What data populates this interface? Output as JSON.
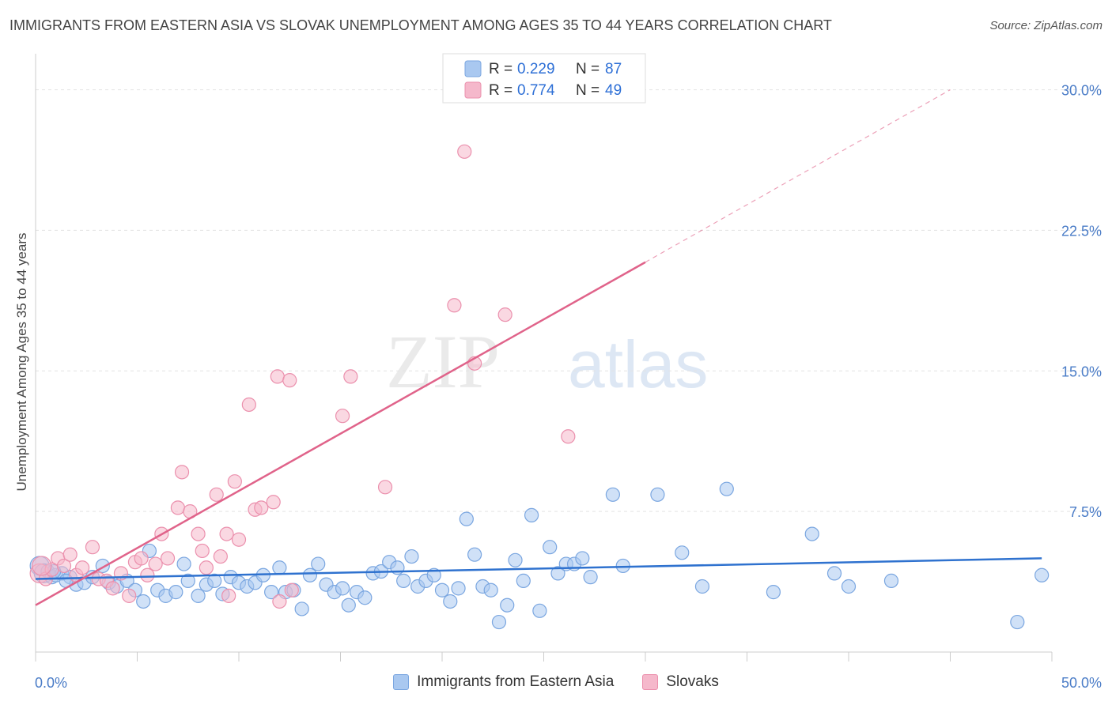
{
  "title": "IMMIGRANTS FROM EASTERN ASIA VS SLOVAK UNEMPLOYMENT AMONG AGES 35 TO 44 YEARS CORRELATION CHART",
  "source": "Source: ZipAtlas.com",
  "watermark": {
    "zip": "ZIP",
    "atlas": "atlas"
  },
  "legend": {
    "r_label": "R =",
    "n_label": "N =",
    "series": [
      {
        "r": "0.229",
        "n": "87"
      },
      {
        "r": "0.774",
        "n": "49"
      }
    ]
  },
  "colors": {
    "blue_fill": "#a9c8f0",
    "blue_stroke": "#7aa6e0",
    "blue_line": "#2f72cf",
    "pink_fill": "#f5b8cb",
    "pink_stroke": "#eb90ad",
    "pink_line": "#e0638a"
  },
  "chart_data": {
    "type": "scatter",
    "title": "IMMIGRANTS FROM EASTERN ASIA VS SLOVAK UNEMPLOYMENT AMONG AGES 35 TO 44 YEARS CORRELATION CHART",
    "xlabel": "",
    "ylabel": "Unemployment Among Ages 35 to 44 years",
    "xlim": [
      0,
      50
    ],
    "ylim": [
      0,
      31.5
    ],
    "x_tick_labels": [
      "0.0%",
      "50.0%"
    ],
    "y_ticks": [
      7.5,
      15.0,
      22.5,
      30.0
    ],
    "y_tick_labels": [
      "7.5%",
      "15.0%",
      "22.5%",
      "30.0%"
    ],
    "series": [
      {
        "name": "Immigrants from Eastern Asia",
        "color": "blue",
        "trend": {
          "x0": 0,
          "y0": 3.9,
          "x1": 49.5,
          "y1": 5.0
        },
        "points": [
          [
            0.2,
            4.6
          ],
          [
            0.4,
            4.2
          ],
          [
            0.6,
            4.3
          ],
          [
            0.8,
            4.0
          ],
          [
            1.0,
            4.1
          ],
          [
            1.3,
            4.2
          ],
          [
            1.7,
            4.0
          ],
          [
            2.0,
            3.6
          ],
          [
            2.4,
            3.7
          ],
          [
            2.8,
            4.0
          ],
          [
            3.3,
            4.6
          ],
          [
            3.6,
            3.7
          ],
          [
            4.0,
            3.5
          ],
          [
            4.5,
            3.8
          ],
          [
            4.9,
            3.3
          ],
          [
            5.3,
            2.7
          ],
          [
            5.6,
            5.4
          ],
          [
            6.0,
            3.3
          ],
          [
            6.4,
            3.0
          ],
          [
            6.9,
            3.2
          ],
          [
            7.3,
            4.7
          ],
          [
            7.5,
            3.8
          ],
          [
            8.0,
            3.0
          ],
          [
            8.4,
            3.6
          ],
          [
            8.8,
            3.8
          ],
          [
            9.2,
            3.1
          ],
          [
            9.6,
            4.0
          ],
          [
            10.0,
            3.7
          ],
          [
            10.4,
            3.5
          ],
          [
            10.8,
            3.7
          ],
          [
            11.2,
            4.1
          ],
          [
            11.6,
            3.2
          ],
          [
            12.0,
            4.5
          ],
          [
            12.3,
            3.2
          ],
          [
            12.7,
            3.3
          ],
          [
            13.1,
            2.3
          ],
          [
            13.5,
            4.1
          ],
          [
            13.9,
            4.7
          ],
          [
            14.3,
            3.6
          ],
          [
            14.7,
            3.2
          ],
          [
            15.1,
            3.4
          ],
          [
            15.4,
            2.5
          ],
          [
            15.8,
            3.2
          ],
          [
            16.2,
            2.9
          ],
          [
            16.6,
            4.2
          ],
          [
            17.0,
            4.3
          ],
          [
            17.4,
            4.8
          ],
          [
            17.8,
            4.5
          ],
          [
            18.1,
            3.8
          ],
          [
            18.5,
            5.1
          ],
          [
            18.8,
            3.5
          ],
          [
            19.2,
            3.8
          ],
          [
            19.6,
            4.1
          ],
          [
            20.0,
            3.3
          ],
          [
            20.4,
            2.7
          ],
          [
            20.8,
            3.4
          ],
          [
            21.2,
            7.1
          ],
          [
            21.6,
            5.2
          ],
          [
            22.0,
            3.5
          ],
          [
            22.4,
            3.3
          ],
          [
            22.8,
            1.6
          ],
          [
            23.2,
            2.5
          ],
          [
            23.6,
            4.9
          ],
          [
            24.0,
            3.8
          ],
          [
            24.4,
            7.3
          ],
          [
            24.8,
            2.2
          ],
          [
            25.3,
            5.6
          ],
          [
            25.7,
            4.2
          ],
          [
            26.1,
            4.7
          ],
          [
            26.5,
            4.7
          ],
          [
            26.9,
            5.0
          ],
          [
            27.3,
            4.0
          ],
          [
            28.4,
            8.4
          ],
          [
            28.9,
            4.6
          ],
          [
            30.6,
            8.4
          ],
          [
            31.8,
            5.3
          ],
          [
            32.8,
            3.5
          ],
          [
            34.0,
            8.7
          ],
          [
            36.3,
            3.2
          ],
          [
            38.2,
            6.3
          ],
          [
            39.3,
            4.2
          ],
          [
            40.0,
            3.5
          ],
          [
            42.1,
            3.8
          ],
          [
            48.3,
            1.6
          ],
          [
            49.5,
            4.1
          ],
          [
            0.9,
            4.3
          ],
          [
            1.5,
            3.8
          ]
        ]
      },
      {
        "name": "Slovaks",
        "color": "pink",
        "trend": {
          "x0": 0,
          "y0": 2.5,
          "x1": 30.0,
          "y1": 20.8
        },
        "trend_extension": {
          "x0": 30.0,
          "y0": 20.8,
          "x1": 45.0,
          "y1": 30.0
        },
        "points": [
          [
            0.2,
            4.2
          ],
          [
            0.5,
            3.9
          ],
          [
            0.8,
            4.4
          ],
          [
            1.1,
            5.0
          ],
          [
            1.4,
            4.6
          ],
          [
            1.7,
            5.2
          ],
          [
            2.0,
            4.1
          ],
          [
            2.3,
            4.5
          ],
          [
            2.8,
            5.6
          ],
          [
            3.1,
            3.9
          ],
          [
            3.5,
            3.8
          ],
          [
            3.8,
            3.4
          ],
          [
            4.2,
            4.2
          ],
          [
            4.6,
            3.0
          ],
          [
            4.9,
            4.8
          ],
          [
            5.2,
            5.0
          ],
          [
            5.5,
            4.1
          ],
          [
            5.9,
            4.7
          ],
          [
            6.2,
            6.3
          ],
          [
            6.5,
            5.0
          ],
          [
            7.0,
            7.7
          ],
          [
            7.2,
            9.6
          ],
          [
            7.6,
            7.5
          ],
          [
            8.0,
            6.3
          ],
          [
            8.2,
            5.4
          ],
          [
            8.4,
            4.5
          ],
          [
            8.9,
            8.4
          ],
          [
            9.1,
            5.1
          ],
          [
            9.4,
            6.3
          ],
          [
            9.5,
            3.0
          ],
          [
            9.8,
            9.1
          ],
          [
            10.0,
            6.0
          ],
          [
            10.5,
            13.2
          ],
          [
            10.8,
            7.6
          ],
          [
            11.1,
            7.7
          ],
          [
            11.7,
            8.0
          ],
          [
            11.9,
            14.7
          ],
          [
            12.0,
            2.7
          ],
          [
            12.5,
            14.5
          ],
          [
            12.6,
            3.3
          ],
          [
            15.1,
            12.6
          ],
          [
            15.5,
            14.7
          ],
          [
            17.2,
            8.8
          ],
          [
            20.6,
            18.5
          ],
          [
            21.1,
            26.7
          ],
          [
            21.6,
            15.4
          ],
          [
            23.1,
            18.0
          ],
          [
            26.2,
            11.5
          ],
          [
            0.3,
            4.6
          ]
        ]
      }
    ]
  }
}
